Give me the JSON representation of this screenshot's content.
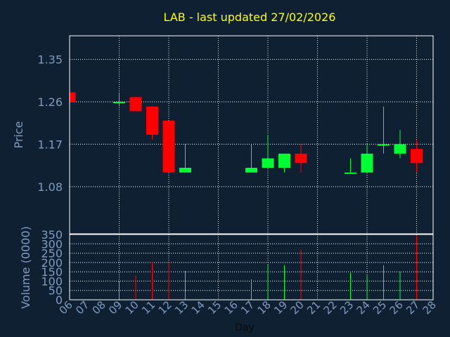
{
  "title": "LAB - last updated 27/02/2026",
  "colors": {
    "background": "#0f2033",
    "title": "#ffff00",
    "axis_text": "#7f9bbf",
    "grid": "#ffffff",
    "up": "#00ff33",
    "down": "#ff0000"
  },
  "chart_data": [
    {
      "type": "candlestick",
      "ylabel": "Price",
      "ylim": [
        0.98,
        1.4
      ],
      "yticks": [
        "1.35",
        "1.26",
        "1.17",
        "1.08"
      ],
      "ytick_values": [
        1.35,
        1.26,
        1.17,
        1.08
      ],
      "grid": true,
      "candles": [
        {
          "day": "06",
          "open": 1.28,
          "high": 1.28,
          "low": 1.26,
          "close": 1.26
        },
        {
          "day": "09",
          "open": 1.26,
          "high": 1.28,
          "low": 1.25,
          "close": 1.26
        },
        {
          "day": "10",
          "open": 1.27,
          "high": 1.27,
          "low": 1.24,
          "close": 1.24
        },
        {
          "day": "11",
          "open": 1.25,
          "high": 1.25,
          "low": 1.18,
          "close": 1.19
        },
        {
          "day": "12",
          "open": 1.22,
          "high": 1.22,
          "low": 1.11,
          "close": 1.11
        },
        {
          "day": "13",
          "open": 1.11,
          "high": 1.17,
          "low": 1.11,
          "close": 1.12
        },
        {
          "day": "17",
          "open": 1.11,
          "high": 1.17,
          "low": 1.11,
          "close": 1.12
        },
        {
          "day": "18",
          "open": 1.12,
          "high": 1.19,
          "low": 1.12,
          "close": 1.14
        },
        {
          "day": "19",
          "open": 1.12,
          "high": 1.15,
          "low": 1.11,
          "close": 1.15
        },
        {
          "day": "20",
          "open": 1.15,
          "high": 1.17,
          "low": 1.11,
          "close": 1.13
        },
        {
          "day": "23",
          "open": 1.11,
          "high": 1.14,
          "low": 1.11,
          "close": 1.11
        },
        {
          "day": "24",
          "open": 1.11,
          "high": 1.17,
          "low": 1.11,
          "close": 1.15
        },
        {
          "day": "25",
          "open": 1.17,
          "high": 1.25,
          "low": 1.15,
          "close": 1.17
        },
        {
          "day": "26",
          "open": 1.15,
          "high": 1.2,
          "low": 1.14,
          "close": 1.17
        },
        {
          "day": "27",
          "open": 1.16,
          "high": 1.18,
          "low": 1.11,
          "close": 1.13
        }
      ]
    },
    {
      "type": "bar",
      "ylabel": "Volume (0000)",
      "xlabel": "Day",
      "ylim": [
        0,
        350
      ],
      "yticks": [
        "350",
        "300",
        "250",
        "200",
        "150",
        "100",
        "50",
        "0"
      ],
      "ytick_values": [
        350,
        300,
        250,
        200,
        150,
        100,
        50,
        0
      ],
      "categories": [
        "06",
        "07",
        "08",
        "09",
        "10",
        "11",
        "12",
        "13",
        "14",
        "15",
        "16",
        "17",
        "18",
        "19",
        "20",
        "21",
        "22",
        "23",
        "24",
        "25",
        "26",
        "27",
        "28"
      ],
      "volumes": [
        {
          "day": "09",
          "value": 100,
          "direction": "up"
        },
        {
          "day": "10",
          "value": 130,
          "direction": "down"
        },
        {
          "day": "11",
          "value": 200,
          "direction": "down"
        },
        {
          "day": "12",
          "value": 200,
          "direction": "down"
        },
        {
          "day": "13",
          "value": 155,
          "direction": "up"
        },
        {
          "day": "17",
          "value": 110,
          "direction": "up"
        },
        {
          "day": "18",
          "value": 190,
          "direction": "up"
        },
        {
          "day": "19",
          "value": 185,
          "direction": "up"
        },
        {
          "day": "20",
          "value": 270,
          "direction": "down"
        },
        {
          "day": "23",
          "value": 145,
          "direction": "up"
        },
        {
          "day": "24",
          "value": 130,
          "direction": "up"
        },
        {
          "day": "25",
          "value": 185,
          "direction": "up"
        },
        {
          "day": "26",
          "value": 150,
          "direction": "up"
        },
        {
          "day": "27",
          "value": 345,
          "direction": "down"
        }
      ]
    }
  ]
}
